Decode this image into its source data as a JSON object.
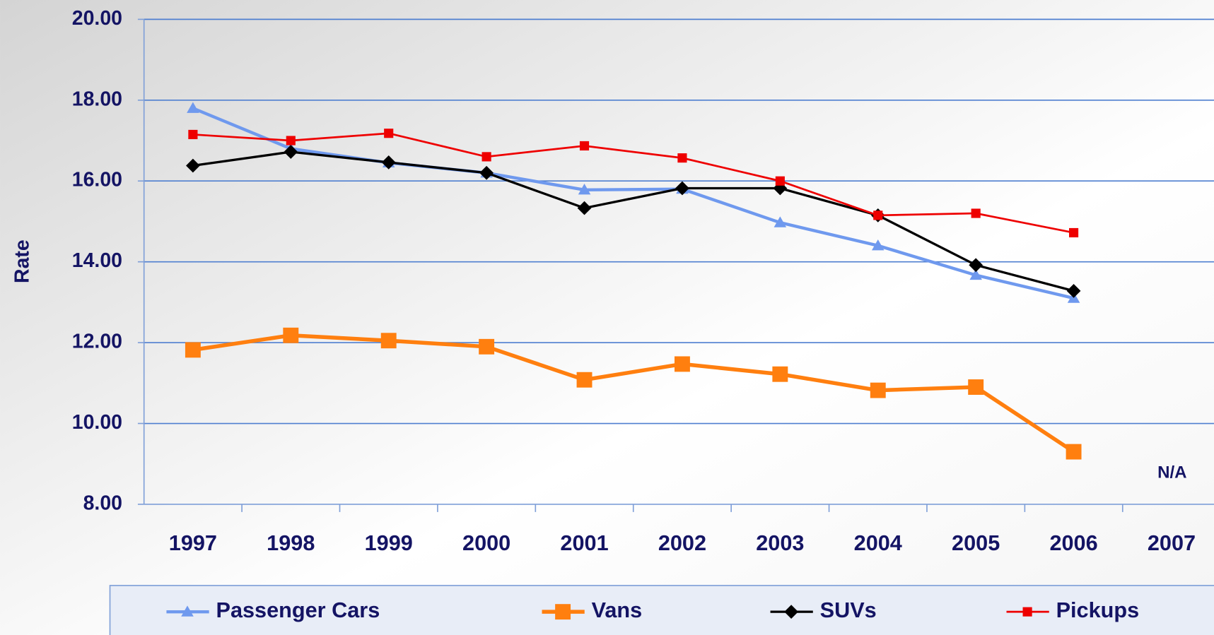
{
  "chart_data": {
    "type": "line",
    "y_label": "Rate",
    "categories": [
      "1997",
      "1998",
      "1999",
      "2000",
      "2001",
      "2002",
      "2003",
      "2004",
      "2005",
      "2006",
      "2007"
    ],
    "series": [
      {
        "name": "Passenger Cars",
        "color": "#6f99ee",
        "marker": "triangle",
        "values": [
          17.8,
          16.8,
          16.45,
          16.2,
          15.78,
          15.8,
          14.97,
          14.4,
          13.67,
          13.1,
          null
        ]
      },
      {
        "name": "Vans",
        "color": "#ff7f0f",
        "marker": "square",
        "values": [
          11.82,
          12.18,
          12.05,
          11.9,
          11.08,
          11.47,
          11.22,
          10.82,
          10.9,
          9.3,
          null
        ]
      },
      {
        "name": "SUVs",
        "color": "#000000",
        "marker": "diamond",
        "values": [
          16.38,
          16.72,
          16.46,
          16.2,
          15.33,
          15.82,
          15.82,
          15.15,
          13.92,
          13.28,
          null
        ]
      },
      {
        "name": "Pickups",
        "color": "#ee0000",
        "marker": "small-square",
        "values": [
          17.15,
          17.0,
          17.18,
          16.6,
          16.87,
          16.57,
          16.0,
          15.15,
          15.2,
          14.72,
          null
        ]
      }
    ],
    "annotations": [
      "N/A"
    ],
    "ylim": [
      8,
      20
    ],
    "yticks": [
      {
        "value": 8,
        "label": "8.00"
      },
      {
        "value": 10,
        "label": "10.00"
      },
      {
        "value": 12,
        "label": "12.00"
      },
      {
        "value": 14,
        "label": "14.00"
      },
      {
        "value": 16,
        "label": "16.00"
      },
      {
        "value": 18,
        "label": "18.00"
      },
      {
        "value": 20,
        "label": "20.00"
      }
    ],
    "grid": true,
    "legend": "bottom"
  }
}
